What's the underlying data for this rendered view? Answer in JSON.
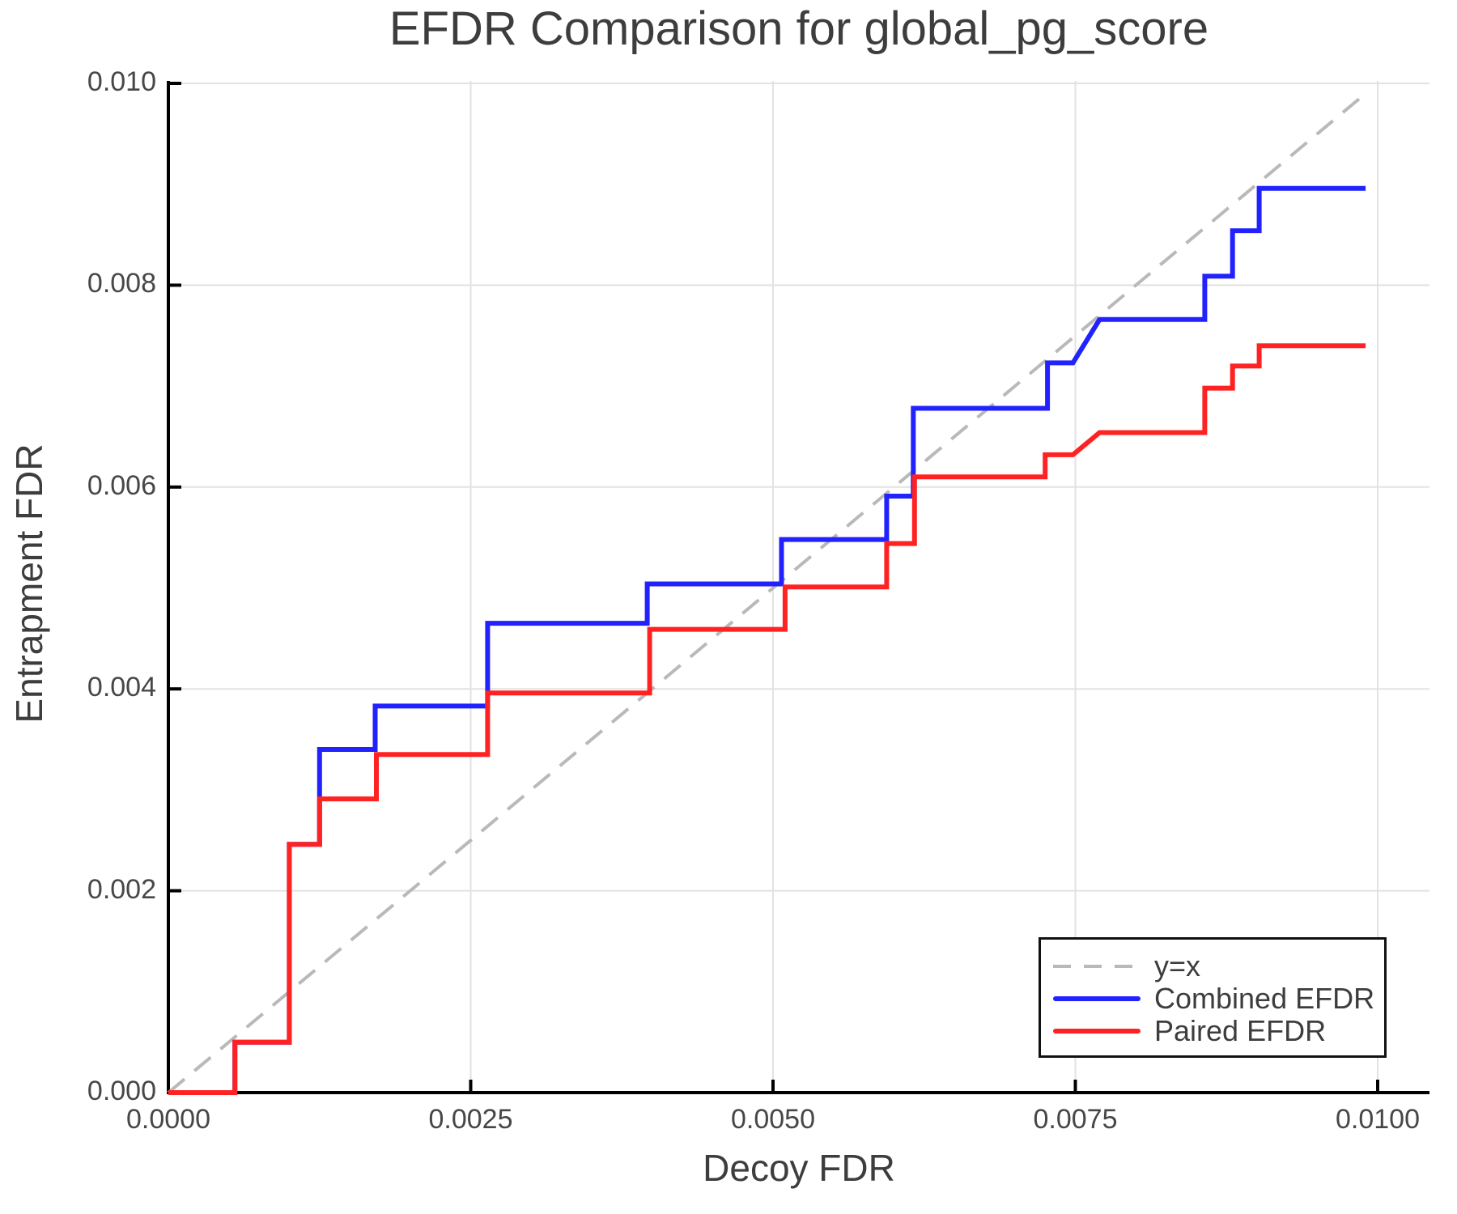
{
  "title": "EFDR Comparison for global_pg_score",
  "axes": {
    "xlabel": "Decoy FDR",
    "ylabel": "Entrapment FDR",
    "x_tick_labels": [
      "0.0000",
      "0.0025",
      "0.0050",
      "0.0075",
      "0.0100"
    ],
    "y_tick_labels": [
      "0.000",
      "0.002",
      "0.004",
      "0.006",
      "0.008",
      "0.010"
    ]
  },
  "colors": {
    "combined": "#2222ff",
    "paired": "#ff2222",
    "identity_dash": "#b9b9b9",
    "grid": "#e2e2e2",
    "spine": "#000000",
    "text": "#3d3d3d",
    "tick_text": "#474747",
    "background": "#ffffff"
  },
  "legend": {
    "position": "lower right"
  },
  "chart_data": {
    "type": "line",
    "title": "EFDR Comparison for global_pg_score",
    "xlabel": "Decoy FDR",
    "ylabel": "Entrapment FDR",
    "xlim": [
      0.0,
      0.0104
    ],
    "ylim": [
      0.0,
      0.01
    ],
    "x_ticks": [
      0.0,
      0.0025,
      0.005,
      0.0075,
      0.01
    ],
    "y_ticks": [
      0.0,
      0.002,
      0.004,
      0.006,
      0.008,
      0.01
    ],
    "grid": true,
    "legend_position": "lower right",
    "series": [
      {
        "name": "y=x",
        "color": "#b9b9b9",
        "dashed": true,
        "width": 4,
        "points": [
          [
            0.0,
            0.0
          ],
          [
            0.0099,
            0.0099
          ]
        ]
      },
      {
        "name": "Combined EFDR",
        "color": "#2222ff",
        "dashed": false,
        "width": 6,
        "points": [
          [
            0.0,
            0.0
          ],
          [
            0.00055,
            0.0
          ],
          [
            0.00055,
            0.0005
          ],
          [
            0.001,
            0.0005
          ],
          [
            0.001,
            0.00246
          ],
          [
            0.00125,
            0.00246
          ],
          [
            0.00125,
            0.0034
          ],
          [
            0.00171,
            0.0034
          ],
          [
            0.00171,
            0.00383
          ],
          [
            0.00264,
            0.00383
          ],
          [
            0.00264,
            0.00465
          ],
          [
            0.00396,
            0.00465
          ],
          [
            0.00396,
            0.00504
          ],
          [
            0.00507,
            0.00504
          ],
          [
            0.00507,
            0.00548
          ],
          [
            0.00594,
            0.00548
          ],
          [
            0.00594,
            0.00591
          ],
          [
            0.00616,
            0.00591
          ],
          [
            0.00616,
            0.00678
          ],
          [
            0.00727,
            0.00678
          ],
          [
            0.00727,
            0.00723
          ],
          [
            0.00748,
            0.00723
          ],
          [
            0.0077,
            0.00766
          ],
          [
            0.00857,
            0.00766
          ],
          [
            0.00857,
            0.00809
          ],
          [
            0.0088,
            0.00809
          ],
          [
            0.0088,
            0.00854
          ],
          [
            0.00902,
            0.00854
          ],
          [
            0.00902,
            0.00896
          ],
          [
            0.0099,
            0.00896
          ]
        ]
      },
      {
        "name": "Paired EFDR",
        "color": "#ff2222",
        "dashed": false,
        "width": 6,
        "points": [
          [
            0.0,
            0.0
          ],
          [
            0.00055,
            0.0
          ],
          [
            0.00055,
            0.0005
          ],
          [
            0.001,
            0.0005
          ],
          [
            0.001,
            0.00246
          ],
          [
            0.00125,
            0.00246
          ],
          [
            0.00125,
            0.00291
          ],
          [
            0.00172,
            0.00291
          ],
          [
            0.00172,
            0.00335
          ],
          [
            0.00264,
            0.00335
          ],
          [
            0.00264,
            0.00396
          ],
          [
            0.00398,
            0.00396
          ],
          [
            0.00398,
            0.00459
          ],
          [
            0.0051,
            0.00459
          ],
          [
            0.0051,
            0.00501
          ],
          [
            0.00594,
            0.00501
          ],
          [
            0.00594,
            0.00544
          ],
          [
            0.00617,
            0.00544
          ],
          [
            0.00617,
            0.0061
          ],
          [
            0.00725,
            0.0061
          ],
          [
            0.00725,
            0.00632
          ],
          [
            0.00748,
            0.00632
          ],
          [
            0.0077,
            0.00654
          ],
          [
            0.00857,
            0.00654
          ],
          [
            0.00857,
            0.00698
          ],
          [
            0.0088,
            0.00698
          ],
          [
            0.0088,
            0.0072
          ],
          [
            0.00902,
            0.0072
          ],
          [
            0.00902,
            0.0074
          ],
          [
            0.0099,
            0.0074
          ]
        ]
      }
    ]
  }
}
